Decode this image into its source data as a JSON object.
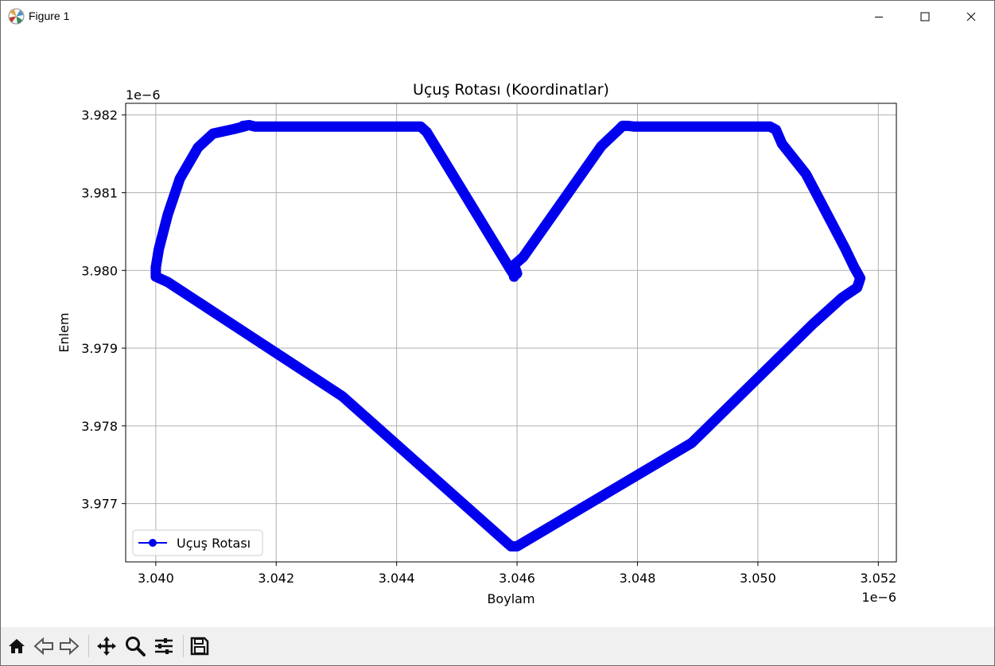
{
  "window": {
    "title": "Figure 1",
    "icon": "matplotlib-icon",
    "controls": [
      "minimize-icon",
      "maximize-icon",
      "close-icon"
    ]
  },
  "toolbar": {
    "buttons": [
      "home-icon",
      "back-icon",
      "forward-icon",
      "pan-icon",
      "zoom-icon",
      "configure-subplots-icon",
      "save-icon"
    ]
  },
  "colors": {
    "series": "#0000ee",
    "grid": "#b0b0b0",
    "axes": "#000000",
    "toolbar_bg": "#f0f0f0"
  },
  "chart_data": {
    "type": "line",
    "title": "Uçuş Rotası (Koordinatlar)",
    "xlabel": "Boylam",
    "ylabel": "Enlem",
    "x_offset_label": "1e−6",
    "y_offset_label": "1e−6",
    "xlim": [
      3.0395,
      3.0523
    ],
    "ylim": [
      3.97625,
      3.98215
    ],
    "xticks": [
      3.04,
      3.042,
      3.044,
      3.046,
      3.048,
      3.05,
      3.052
    ],
    "yticks": [
      3.977,
      3.978,
      3.979,
      3.98,
      3.981,
      3.982
    ],
    "xtick_labels": [
      "3.040",
      "3.042",
      "3.044",
      "3.046",
      "3.048",
      "3.050",
      "3.052"
    ],
    "ytick_labels": [
      "3.977",
      "3.978",
      "3.979",
      "3.980",
      "3.981",
      "3.982"
    ],
    "grid": true,
    "legend_loc": "lower left",
    "series": [
      {
        "name": "Uçuş Rotası",
        "color": "#0000ee",
        "marker": "o",
        "x": [
          3.04595,
          3.04595,
          3.0459,
          3.0445,
          3.0444,
          3.04165,
          3.04155,
          3.04145,
          3.0415,
          3.0413,
          3.04095,
          3.0407,
          3.0404,
          3.0402,
          3.04005,
          3.04,
          3.04,
          3.0402,
          3.0431,
          3.0459,
          3.04595,
          3.046,
          3.0489,
          3.0509,
          3.0514,
          3.05165,
          3.0517,
          3.0516,
          3.05145,
          3.0508,
          3.0504,
          3.0503,
          3.0502,
          3.04795,
          3.04785,
          3.04775,
          3.0477,
          3.0474,
          3.0461,
          3.04595,
          3.046,
          3.04595
        ],
        "y": [
          3.97992,
          3.97994,
          3.98,
          3.98178,
          3.98185,
          3.98185,
          3.98187,
          3.98186,
          3.98186,
          3.98182,
          3.98176,
          3.98158,
          3.98118,
          3.98072,
          3.98027,
          3.98004,
          3.97992,
          3.97985,
          3.97838,
          3.97645,
          3.97645,
          3.97645,
          3.97778,
          3.9793,
          3.97965,
          3.97978,
          3.9799,
          3.98004,
          3.98028,
          3.98124,
          3.98163,
          3.98181,
          3.98185,
          3.98185,
          3.98186,
          3.98186,
          3.98182,
          3.9816,
          3.98017,
          3.98007,
          3.97996,
          3.97993
        ]
      }
    ]
  }
}
